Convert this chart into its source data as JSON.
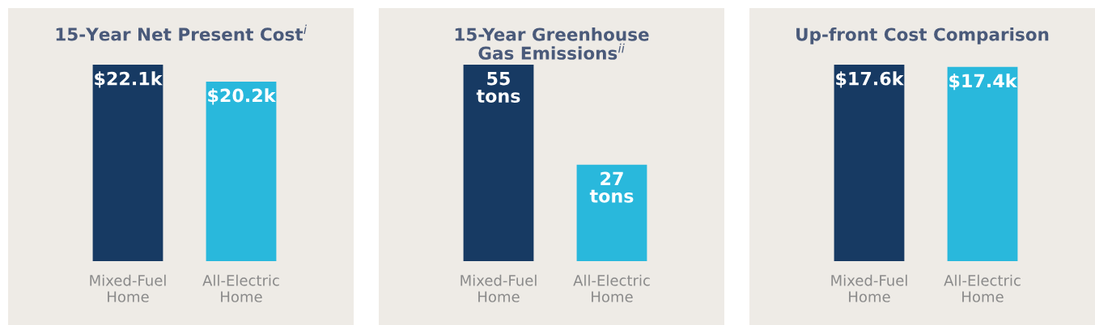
{
  "chart_data": [
    {
      "type": "bar",
      "title": "15-Year Net Present Cost$^{i}$",
      "categories": [
        "Mixed-Fuel\nHome",
        "All-Electric\nHome"
      ],
      "values": [
        22.1,
        20.2
      ],
      "colors": [
        "#173a63",
        "#29b8dc"
      ],
      "value_labels": [
        "$22.1k",
        "$20.2k"
      ],
      "tick_labels": "x",
      "grid": false,
      "legend": false
    },
    {
      "type": "bar",
      "title": "15-Year Greenhouse\nGas Emissions$^{ii}$",
      "categories": [
        "Mixed-Fuel\nHome",
        "All-Electric\nHome"
      ],
      "values": [
        55,
        27
      ],
      "colors": [
        "#173a63",
        "#29b8dc"
      ],
      "value_labels": [
        "55\ntons",
        "27\ntons"
      ],
      "tick_labels": "x",
      "grid": false,
      "legend": false
    },
    {
      "type": "bar",
      "title": "Up-front Cost Comparison",
      "categories": [
        "Mixed-Fuel\nHome",
        "All-Electric\nHome"
      ],
      "values": [
        17.6,
        17.4
      ],
      "colors": [
        "#173a63",
        "#29b8dc"
      ],
      "value_labels": [
        "$17.6k",
        "$17.4k"
      ],
      "tick_labels": "x",
      "grid": false,
      "legend": false
    }
  ]
}
